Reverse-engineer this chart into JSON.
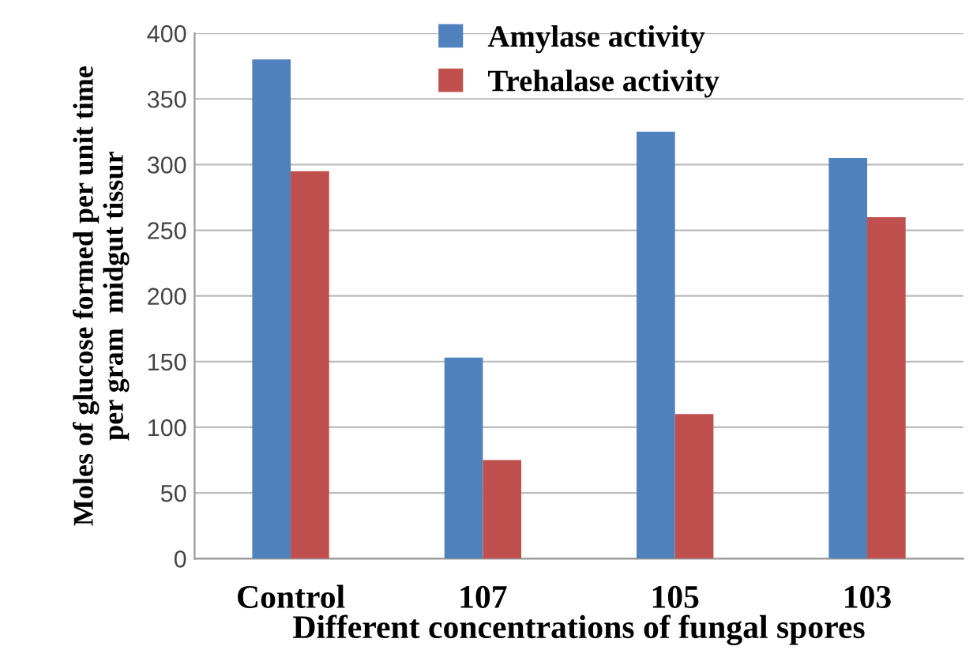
{
  "chart_data": {
    "type": "bar",
    "xlabel": "Different concentrations of fungal spores",
    "ylabel": "Moles of glucose formed per unit time\nper gram  midgut tissur",
    "categories": [
      "Control",
      "107",
      "105",
      "103"
    ],
    "series": [
      {
        "name": "Amylase activity",
        "color": "#4f81bd",
        "values": [
          380,
          153,
          325,
          305
        ]
      },
      {
        "name": "Trehalase activity",
        "color": "#c0504d",
        "values": [
          295,
          75,
          110,
          260
        ]
      }
    ],
    "ylim": [
      0,
      400
    ],
    "yticks": [
      0,
      50,
      100,
      150,
      200,
      250,
      300,
      350,
      400
    ],
    "grid": "y",
    "legend": "top"
  }
}
